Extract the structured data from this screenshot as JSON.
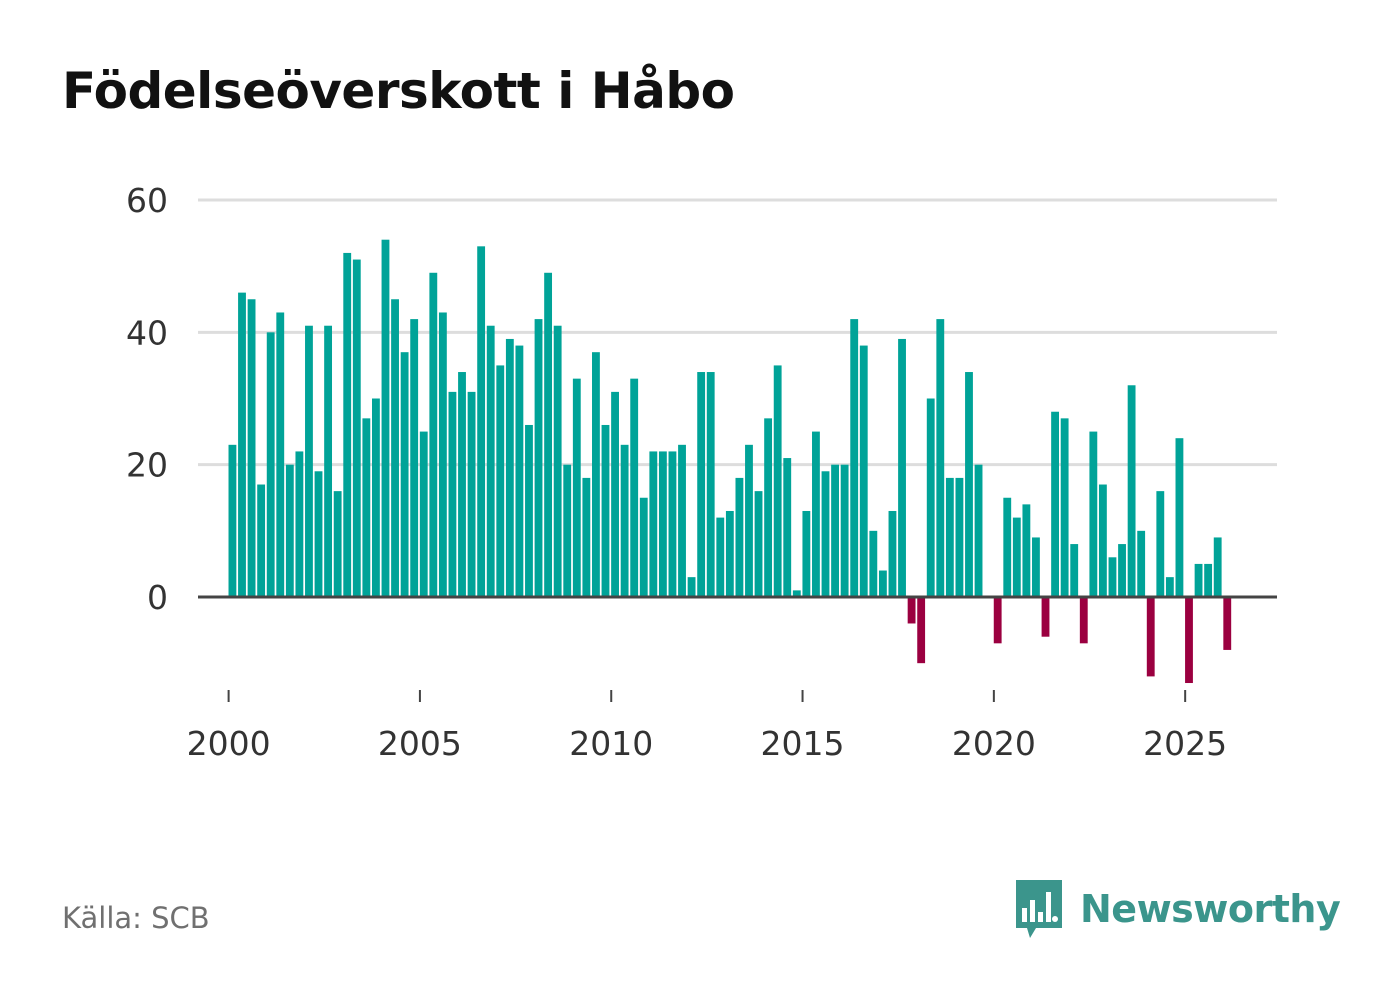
{
  "chart_data": {
    "type": "bar",
    "title": "Födelseöverskott i Håbo",
    "xlabel": "",
    "ylabel": "",
    "x_start": 2000.1,
    "x_step": 0.25,
    "values": [
      23,
      46,
      45,
      17,
      40,
      43,
      20,
      22,
      41,
      19,
      41,
      16,
      52,
      51,
      27,
      30,
      54,
      45,
      37,
      42,
      25,
      49,
      43,
      31,
      34,
      31,
      53,
      41,
      35,
      39,
      38,
      26,
      42,
      49,
      41,
      20,
      33,
      18,
      37,
      26,
      31,
      23,
      33,
      15,
      22,
      22,
      22,
      23,
      3,
      34,
      34,
      12,
      13,
      18,
      23,
      16,
      27,
      35,
      21,
      1,
      13,
      25,
      19,
      20,
      20,
      42,
      38,
      10,
      4,
      13,
      39,
      -4,
      -10,
      30,
      42,
      18,
      18,
      34,
      20,
      0,
      -7,
      15,
      12,
      14,
      9,
      -6,
      28,
      27,
      8,
      -7,
      25,
      17,
      6,
      8,
      32,
      10,
      -12,
      16,
      3,
      24,
      -13,
      5,
      5,
      9,
      -8
    ],
    "ylim": [
      -16,
      60
    ],
    "xlim": [
      1999.2,
      2027.4
    ],
    "y_ticks": [
      "0",
      "20",
      "40",
      "60"
    ],
    "x_ticks": [
      "2000",
      "2005",
      "2010",
      "2015",
      "2020",
      "2025"
    ],
    "grid": true,
    "legend": "none",
    "colors": {
      "positive": "#00a398",
      "negative": "#9b0040",
      "grid": "#dddddd",
      "baseline": "#444444"
    }
  },
  "footer": {
    "source": "Källa: SCB"
  },
  "brand": {
    "name": "Newsworthy",
    "icon": "newsworthy-logo-icon",
    "color": "#3b958c"
  }
}
